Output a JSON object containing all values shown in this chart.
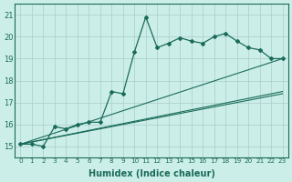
{
  "xlabel": "Humidex (Indice chaleur)",
  "ylabel": "",
  "background_color": "#cceee8",
  "grid_color": "#aacccc",
  "line_color": "#1a6b5a",
  "xlim": [
    -0.5,
    23.5
  ],
  "ylim": [
    14.5,
    21.5
  ],
  "xticks": [
    0,
    1,
    2,
    3,
    4,
    5,
    6,
    7,
    8,
    9,
    10,
    11,
    12,
    13,
    14,
    15,
    16,
    17,
    18,
    19,
    20,
    21,
    22,
    23
  ],
  "yticks": [
    15,
    16,
    17,
    18,
    19,
    20,
    21
  ],
  "series1_x": [
    0,
    1,
    2,
    3,
    4,
    5,
    6,
    7,
    8,
    9,
    10,
    11,
    12,
    13,
    14,
    15,
    16,
    17,
    18,
    19,
    20,
    21,
    22,
    23
  ],
  "series1_y": [
    15.1,
    15.1,
    15.0,
    15.9,
    15.8,
    16.0,
    16.1,
    16.1,
    17.5,
    17.4,
    19.3,
    20.9,
    19.5,
    19.7,
    19.95,
    19.8,
    19.7,
    20.0,
    20.15,
    19.8,
    19.5,
    19.4,
    19.0,
    19.0
  ],
  "line2_x0": 0,
  "line2_y0": 15.1,
  "line2_x1": 23,
  "line2_y1": 19.0,
  "line3_x0": 0,
  "line3_y0": 15.1,
  "line3_x1": 23,
  "line3_y1": 17.5,
  "line4_x0": 0,
  "line4_y0": 15.1,
  "line4_x1": 23,
  "line4_y1": 17.4,
  "figsize": [
    3.2,
    2.0
  ],
  "dpi": 100
}
